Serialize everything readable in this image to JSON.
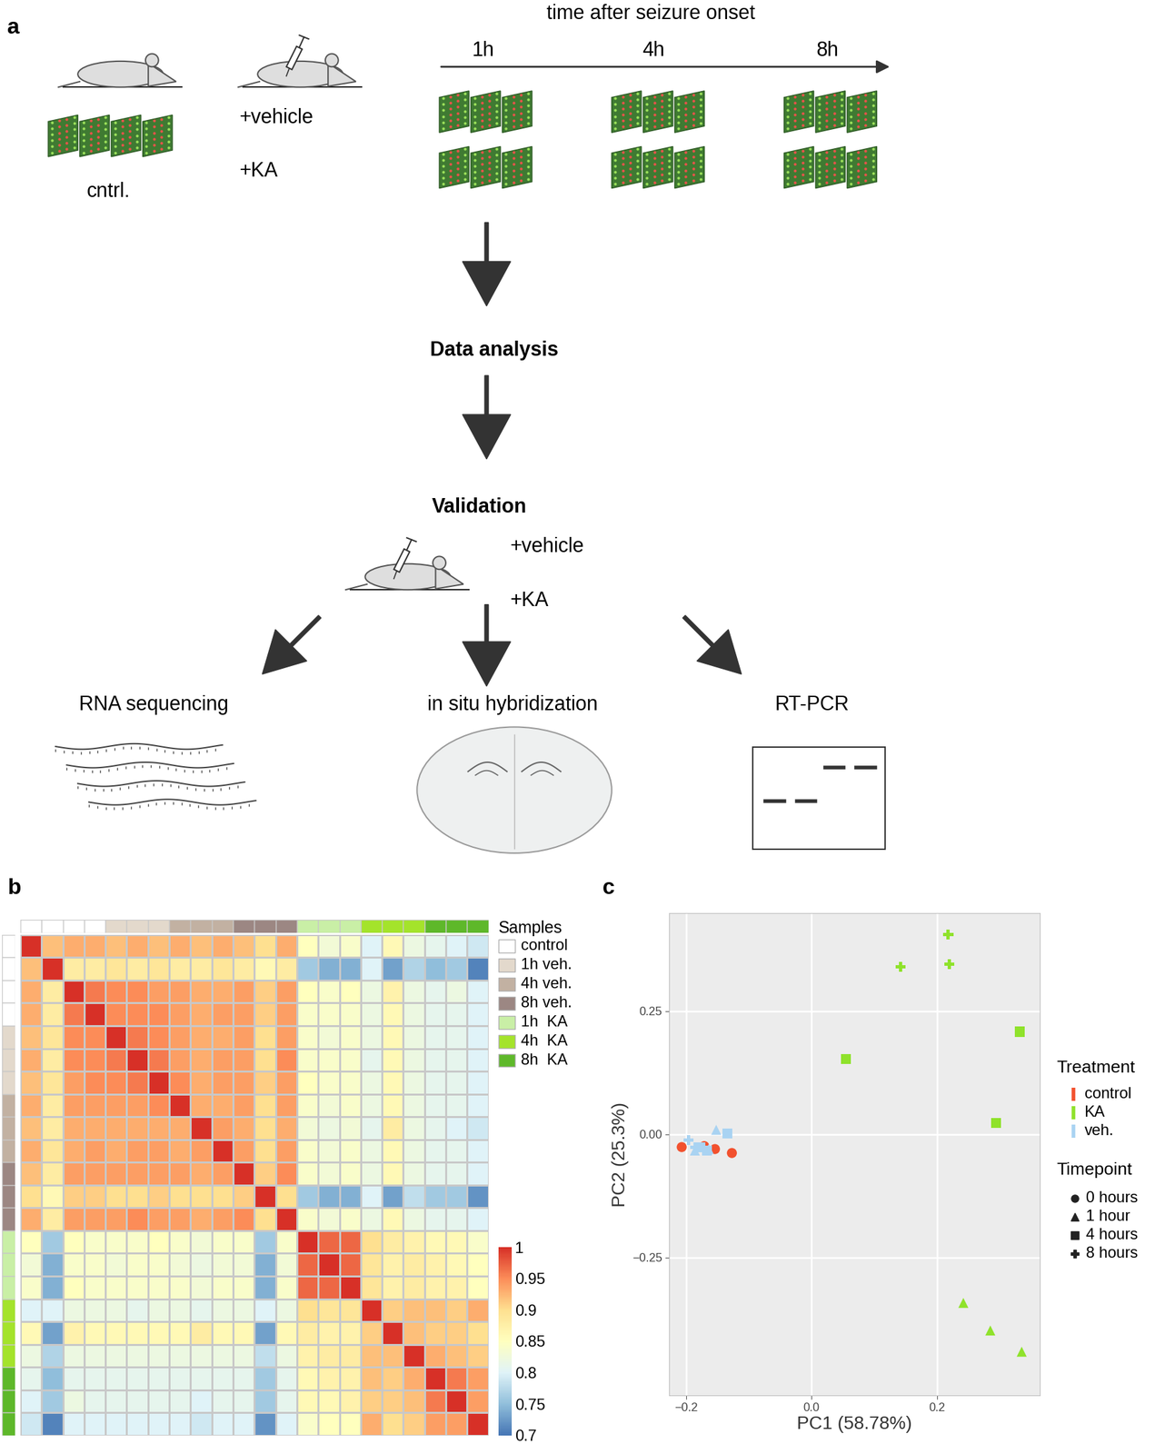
{
  "diagram": {
    "panel_labels": [
      "a",
      "b",
      "c"
    ],
    "timeline": {
      "title": "time after seizure onset",
      "timepoints": [
        "1h",
        "4h",
        "8h"
      ]
    },
    "control_label": "cntrl.",
    "treatments": [
      "+vehicle",
      "+KA"
    ],
    "steps": [
      "Data analysis",
      "Validation"
    ],
    "validation_treatments": [
      "+vehicle",
      "+KA"
    ],
    "methods": [
      "RNA sequencing",
      "in situ hybridization",
      "RT-PCR"
    ]
  },
  "chart_data": [
    {
      "type": "heatmap",
      "tick_labels": false,
      "legend_title": "Samples",
      "groups": [
        {
          "name": "control",
          "color": "#ffffff"
        },
        {
          "name": "1h veh.",
          "color": "#e3d9cc"
        },
        {
          "name": "4h veh.",
          "color": "#c2b1a2"
        },
        {
          "name": "8h veh.",
          "color": "#9c8783"
        },
        {
          "name": "1h  KA",
          "color": "#c9efa6"
        },
        {
          "name": "4h  KA",
          "color": "#a4e32b"
        },
        {
          "name": "8h  KA",
          "color": "#5eb82a"
        }
      ],
      "sample_groups": [
        "control",
        "control",
        "control",
        "control",
        "1h veh.",
        "1h veh.",
        "1h veh.",
        "4h veh.",
        "4h veh.",
        "4h veh.",
        "8h veh.",
        "8h veh.",
        "8h veh.",
        "1h  KA",
        "1h  KA",
        "1h  KA",
        "4h  KA",
        "4h  KA",
        "4h  KA",
        "8h  KA",
        "8h  KA",
        "8h  KA"
      ],
      "values": [
        [
          1,
          0.92,
          0.93,
          0.93,
          0.92,
          0.93,
          0.92,
          0.93,
          0.92,
          0.93,
          0.92,
          0.9,
          0.93,
          0.85,
          0.83,
          0.84,
          0.8,
          0.86,
          0.82,
          0.81,
          0.8,
          0.79
        ],
        [
          0.92,
          1,
          0.88,
          0.88,
          0.89,
          0.88,
          0.89,
          0.88,
          0.88,
          0.89,
          0.88,
          0.86,
          0.88,
          0.76,
          0.74,
          0.74,
          0.8,
          0.73,
          0.77,
          0.75,
          0.76,
          0.71
        ],
        [
          0.93,
          0.88,
          1,
          0.96,
          0.95,
          0.95,
          0.94,
          0.94,
          0.93,
          0.93,
          0.94,
          0.91,
          0.94,
          0.85,
          0.84,
          0.85,
          0.82,
          0.87,
          0.82,
          0.81,
          0.82,
          0.8
        ],
        [
          0.93,
          0.88,
          0.96,
          1,
          0.95,
          0.95,
          0.95,
          0.94,
          0.93,
          0.94,
          0.94,
          0.91,
          0.94,
          0.84,
          0.84,
          0.84,
          0.82,
          0.86,
          0.82,
          0.81,
          0.81,
          0.8
        ],
        [
          0.92,
          0.89,
          0.95,
          0.95,
          1,
          0.96,
          0.95,
          0.94,
          0.93,
          0.93,
          0.94,
          0.9,
          0.94,
          0.84,
          0.83,
          0.84,
          0.82,
          0.86,
          0.82,
          0.81,
          0.81,
          0.8
        ],
        [
          0.93,
          0.88,
          0.95,
          0.95,
          0.96,
          1,
          0.96,
          0.94,
          0.93,
          0.94,
          0.94,
          0.9,
          0.95,
          0.84,
          0.84,
          0.84,
          0.81,
          0.86,
          0.82,
          0.81,
          0.81,
          0.8
        ],
        [
          0.92,
          0.89,
          0.94,
          0.95,
          0.95,
          0.96,
          1,
          0.95,
          0.93,
          0.94,
          0.94,
          0.91,
          0.94,
          0.85,
          0.84,
          0.84,
          0.82,
          0.86,
          0.82,
          0.81,
          0.81,
          0.8
        ],
        [
          0.93,
          0.88,
          0.94,
          0.94,
          0.94,
          0.94,
          0.95,
          1,
          0.93,
          0.93,
          0.94,
          0.9,
          0.94,
          0.84,
          0.83,
          0.84,
          0.82,
          0.86,
          0.82,
          0.81,
          0.81,
          0.8
        ],
        [
          0.92,
          0.88,
          0.93,
          0.93,
          0.93,
          0.93,
          0.93,
          0.93,
          1,
          0.94,
          0.93,
          0.9,
          0.93,
          0.83,
          0.82,
          0.83,
          0.81,
          0.88,
          0.82,
          0.81,
          0.8,
          0.79
        ],
        [
          0.93,
          0.89,
          0.93,
          0.94,
          0.93,
          0.94,
          0.94,
          0.93,
          0.94,
          1,
          0.94,
          0.9,
          0.94,
          0.84,
          0.83,
          0.84,
          0.82,
          0.86,
          0.82,
          0.81,
          0.81,
          0.8
        ],
        [
          0.92,
          0.88,
          0.94,
          0.94,
          0.94,
          0.94,
          0.94,
          0.94,
          0.93,
          0.94,
          1,
          0.91,
          0.95,
          0.84,
          0.83,
          0.84,
          0.82,
          0.86,
          0.82,
          0.81,
          0.81,
          0.8
        ],
        [
          0.9,
          0.86,
          0.91,
          0.91,
          0.9,
          0.9,
          0.91,
          0.9,
          0.9,
          0.9,
          0.91,
          1,
          0.9,
          0.76,
          0.74,
          0.74,
          0.8,
          0.73,
          0.78,
          0.76,
          0.76,
          0.72
        ],
        [
          0.93,
          0.88,
          0.94,
          0.94,
          0.94,
          0.95,
          0.94,
          0.94,
          0.93,
          0.94,
          0.95,
          0.9,
          1,
          0.84,
          0.83,
          0.84,
          0.82,
          0.86,
          0.82,
          0.81,
          0.81,
          0.8
        ],
        [
          0.85,
          0.76,
          0.85,
          0.84,
          0.84,
          0.84,
          0.85,
          0.84,
          0.83,
          0.84,
          0.84,
          0.76,
          0.84,
          1,
          0.97,
          0.97,
          0.9,
          0.88,
          0.87,
          0.86,
          0.86,
          0.84
        ],
        [
          0.83,
          0.74,
          0.84,
          0.84,
          0.83,
          0.84,
          0.84,
          0.83,
          0.82,
          0.83,
          0.83,
          0.74,
          0.83,
          0.97,
          1,
          0.97,
          0.89,
          0.87,
          0.88,
          0.87,
          0.86,
          0.85
        ],
        [
          0.84,
          0.74,
          0.85,
          0.84,
          0.84,
          0.84,
          0.84,
          0.84,
          0.83,
          0.84,
          0.84,
          0.74,
          0.84,
          0.97,
          0.97,
          1,
          0.89,
          0.87,
          0.88,
          0.87,
          0.87,
          0.85
        ],
        [
          0.8,
          0.8,
          0.82,
          0.82,
          0.82,
          0.81,
          0.82,
          0.82,
          0.81,
          0.82,
          0.82,
          0.8,
          0.82,
          0.9,
          0.89,
          0.89,
          1,
          0.91,
          0.92,
          0.92,
          0.91,
          0.93
        ],
        [
          0.86,
          0.73,
          0.87,
          0.86,
          0.86,
          0.86,
          0.86,
          0.86,
          0.88,
          0.86,
          0.86,
          0.73,
          0.86,
          0.88,
          0.87,
          0.87,
          0.91,
          1,
          0.92,
          0.91,
          0.91,
          0.9
        ],
        [
          0.82,
          0.77,
          0.82,
          0.82,
          0.82,
          0.82,
          0.82,
          0.82,
          0.82,
          0.82,
          0.82,
          0.78,
          0.82,
          0.87,
          0.88,
          0.88,
          0.92,
          0.92,
          1,
          0.93,
          0.92,
          0.91
        ],
        [
          0.81,
          0.75,
          0.81,
          0.81,
          0.81,
          0.81,
          0.81,
          0.81,
          0.81,
          0.81,
          0.81,
          0.76,
          0.81,
          0.86,
          0.87,
          0.87,
          0.92,
          0.91,
          0.93,
          1,
          0.96,
          0.94
        ],
        [
          0.8,
          0.76,
          0.82,
          0.81,
          0.81,
          0.81,
          0.81,
          0.81,
          0.8,
          0.81,
          0.81,
          0.76,
          0.81,
          0.86,
          0.86,
          0.87,
          0.91,
          0.91,
          0.92,
          0.96,
          1,
          0.94
        ],
        [
          0.79,
          0.71,
          0.8,
          0.8,
          0.8,
          0.8,
          0.8,
          0.8,
          0.79,
          0.8,
          0.8,
          0.72,
          0.8,
          0.84,
          0.85,
          0.85,
          0.93,
          0.9,
          0.91,
          0.94,
          0.94,
          1
        ]
      ],
      "colorbar": {
        "range": [
          0.7,
          1
        ],
        "ticks": [
          1,
          0.95,
          0.9,
          0.85,
          0.8,
          0.75,
          0.7
        ],
        "colors": [
          "#4575B4",
          "#91BFDB",
          "#E0F3F8",
          "#FFFFBF",
          "#FEE090",
          "#FC8D59",
          "#D73027"
        ]
      }
    },
    {
      "type": "scatter",
      "xlabel": "PC1 (58.78%)",
      "ylabel": "PC2 (25.3%)",
      "xlim": [
        -0.227,
        0.364
      ],
      "ylim": [
        -0.53,
        0.448
      ],
      "xticks": [
        {
          "value": -0.2,
          "label": "−0.2"
        },
        {
          "value": 0.0,
          "label": "0.0"
        },
        0.2
      ],
      "yticks": [
        {
          "value": -0.25,
          "label": "−0.25"
        },
        {
          "value": 0.0,
          "label": "0.00"
        },
        0.25
      ],
      "grid": true,
      "treatments": {
        "title": "Treatment",
        "items": [
          {
            "name": "control",
            "color": "#f2512e"
          },
          {
            "name": "KA",
            "color": "#8fe22b"
          },
          {
            "name": "veh.",
            "color": "#a9d3f2"
          }
        ]
      },
      "timepoints": {
        "title": "Timepoint",
        "items": [
          {
            "name": "0 hours",
            "marker": "circle"
          },
          {
            "name": "1 hour",
            "marker": "triangle"
          },
          {
            "name": "4 hours",
            "marker": "square"
          },
          {
            "name": "8 hours",
            "marker": "cross"
          }
        ]
      },
      "series": [
        {
          "treatment": "control",
          "timepoint": "0 hours",
          "x": [
            -0.207,
            -0.171,
            -0.154,
            -0.127
          ],
          "y": [
            -0.026,
            -0.024,
            -0.03,
            -0.038
          ]
        },
        {
          "treatment": "veh.",
          "timepoint": "1 hour",
          "x": [
            -0.152,
            -0.186,
            -0.164
          ],
          "y": [
            0.009,
            -0.033,
            -0.03
          ]
        },
        {
          "treatment": "veh.",
          "timepoint": "4 hours",
          "x": [
            -0.134,
            -0.177,
            -0.167
          ],
          "y": [
            0.002,
            -0.026,
            -0.033
          ]
        },
        {
          "treatment": "veh.",
          "timepoint": "8 hours",
          "x": [
            -0.196,
            -0.186,
            -0.17
          ],
          "y": [
            -0.012,
            -0.026,
            -0.033
          ]
        },
        {
          "treatment": "KA",
          "timepoint": "1 hour",
          "x": [
            0.242,
            0.285,
            0.335
          ],
          "y": [
            -0.342,
            -0.398,
            -0.441
          ]
        },
        {
          "treatment": "KA",
          "timepoint": "4 hours",
          "x": [
            0.332,
            0.055,
            0.294
          ],
          "y": [
            0.208,
            0.153,
            0.023
          ]
        },
        {
          "treatment": "KA",
          "timepoint": "8 hours",
          "x": [
            0.218,
            0.142,
            0.22
          ],
          "y": [
            0.405,
            0.34,
            0.345
          ]
        }
      ]
    }
  ]
}
